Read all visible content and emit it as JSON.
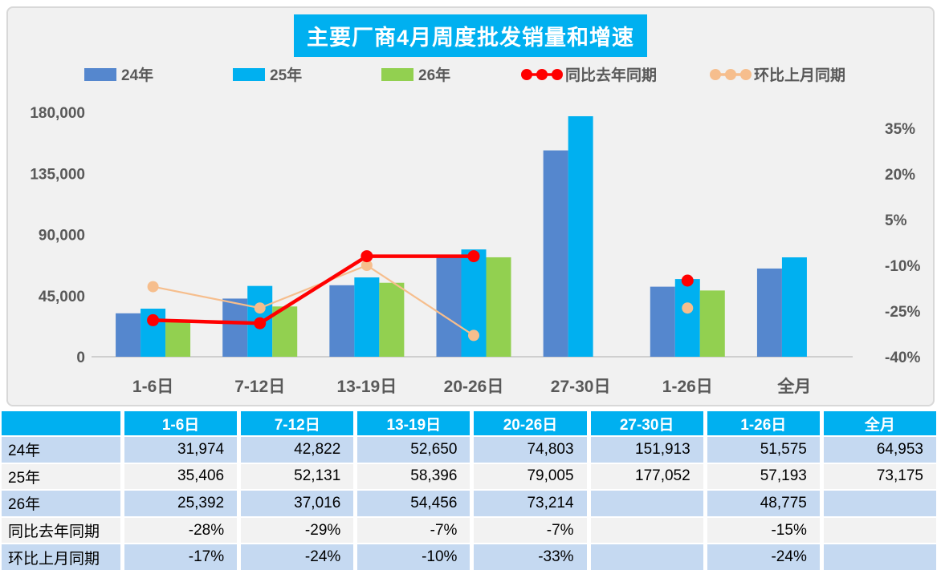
{
  "title": "主要厂商4月周度批发销量和增速",
  "colors": {
    "accent_cyan": "#00B0F0",
    "bar_blue": "#5587CE",
    "bar_cyan": "#00B0F0",
    "bar_green": "#92D050",
    "line_red": "#FF0000",
    "line_peach": "#F6BE8D",
    "axis_text": "#595959",
    "chart_bg": "#F1F1F1",
    "table_row_blue": "#C5D9F1",
    "table_row_gray": "#F2F2F2"
  },
  "chart_data": {
    "type": "bar+line combo",
    "title": "主要厂商4月周度批发销量和增速",
    "categories": [
      "1-6日",
      "7-12日",
      "13-19日",
      "20-26日",
      "27-30日",
      "1-26日",
      "全月"
    ],
    "bar_series": [
      {
        "name": "24年",
        "color": "#5587CE",
        "values": [
          31974,
          42822,
          52650,
          74803,
          151913,
          51575,
          64953
        ]
      },
      {
        "name": "25年",
        "color": "#00B0F0",
        "values": [
          35406,
          52131,
          58396,
          79005,
          177052,
          57193,
          73175
        ]
      },
      {
        "name": "26年",
        "color": "#92D050",
        "values": [
          25392,
          37016,
          54456,
          73214,
          null,
          48775,
          null
        ]
      }
    ],
    "line_series": [
      {
        "name": "同比去年同期",
        "color": "#FF0000",
        "values_pct": [
          -28,
          -29,
          -7,
          -7,
          null,
          -15,
          null
        ],
        "stroke_width": 4.5,
        "marker_radius": 7.5
      },
      {
        "name": "环比上月同期",
        "color": "#F6BE8D",
        "values_pct": [
          -17,
          -24,
          -10,
          -33,
          null,
          -24,
          null
        ],
        "stroke_width": 2.2,
        "marker_radius": 7
      }
    ],
    "left_axis": {
      "min": 0,
      "max": 180000,
      "ticks": [
        {
          "v": 0,
          "label": "0"
        },
        {
          "v": 45000,
          "label": "45,000"
        },
        {
          "v": 90000,
          "label": "90,000"
        },
        {
          "v": 135000,
          "label": "135,000"
        },
        {
          "v": 180000,
          "label": "180,000"
        }
      ]
    },
    "right_axis": {
      "min": -40,
      "max": 35,
      "ticks": [
        {
          "v": 35,
          "label": "35%"
        },
        {
          "v": 20,
          "label": "20%"
        },
        {
          "v": 5,
          "label": "5%"
        },
        {
          "v": -10,
          "label": "-10%"
        },
        {
          "v": -25,
          "label": "-25%"
        },
        {
          "v": -40,
          "label": "-40%"
        }
      ]
    },
    "legend_position": "top",
    "grid": "off"
  },
  "table": {
    "header": [
      "",
      "1-6日",
      "7-12日",
      "13-19日",
      "20-26日",
      "27-30日",
      "1-26日",
      "全月"
    ],
    "rows": [
      {
        "label": "24年",
        "values": [
          "31,974",
          "42,822",
          "52,650",
          "74,803",
          "151,913",
          "51,575",
          "64,953"
        ]
      },
      {
        "label": "25年",
        "values": [
          "35,406",
          "52,131",
          "58,396",
          "79,005",
          "177,052",
          "57,193",
          "73,175"
        ]
      },
      {
        "label": "26年",
        "values": [
          "25,392",
          "37,016",
          "54,456",
          "73,214",
          "",
          "48,775",
          ""
        ]
      },
      {
        "label": "同比去年同期",
        "values": [
          "-28%",
          "-29%",
          "-7%",
          "-7%",
          "",
          "-15%",
          ""
        ]
      },
      {
        "label": "环比上月同期",
        "values": [
          "-17%",
          "-24%",
          "-10%",
          "-33%",
          "",
          "-24%",
          ""
        ]
      }
    ]
  }
}
